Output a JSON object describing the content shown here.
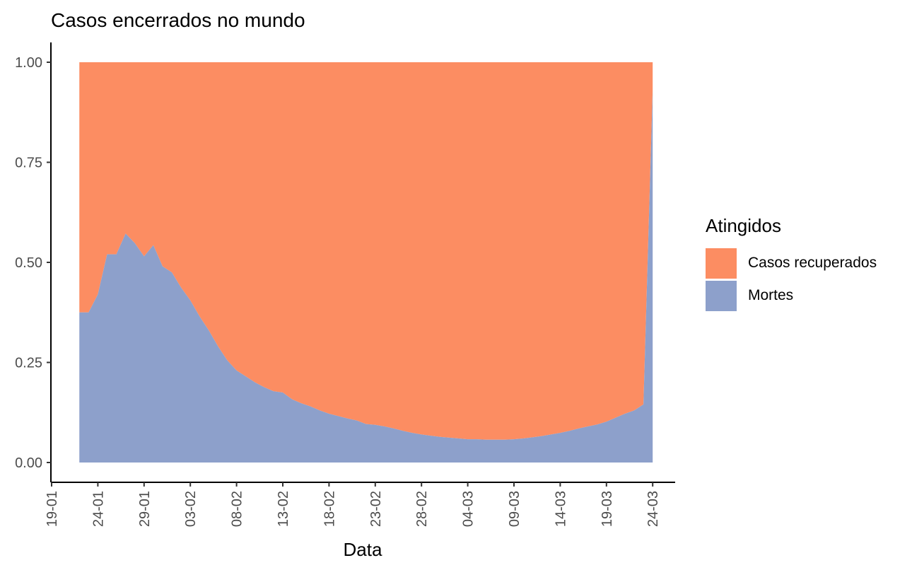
{
  "chart_data": {
    "type": "area",
    "stacked": true,
    "normalized": true,
    "title": "Casos encerrados no mundo",
    "xlabel": "Data",
    "ylabel": "",
    "ylim": [
      0,
      1
    ],
    "yticks": [
      "0.00",
      "0.25",
      "0.50",
      "0.75",
      "1.00"
    ],
    "xticks": [
      "19-01",
      "24-01",
      "29-01",
      "03-02",
      "08-02",
      "13-02",
      "18-02",
      "23-02",
      "28-02",
      "04-03",
      "09-03",
      "14-03",
      "19-03",
      "24-03"
    ],
    "x_start": "22-01",
    "x_end": "24-03",
    "grid": false,
    "legend": {
      "title": "Atingidos",
      "position": "right",
      "entries": [
        "Casos recuperados",
        "Mortes"
      ]
    },
    "colors": {
      "Casos recuperados": "#FC8D62",
      "Mortes": "#8DA0CB"
    },
    "series": [
      {
        "name": "Mortes",
        "points": [
          [
            "22-01",
            0.375
          ],
          [
            "23-01",
            0.375
          ],
          [
            "24-01",
            0.42
          ],
          [
            "25-01",
            0.52
          ],
          [
            "26-01",
            0.52
          ],
          [
            "27-01",
            0.572
          ],
          [
            "28-01",
            0.548
          ],
          [
            "29-01",
            0.515
          ],
          [
            "30-01",
            0.543
          ],
          [
            "31-01",
            0.49
          ],
          [
            "01-02",
            0.475
          ],
          [
            "02-02",
            0.437
          ],
          [
            "03-02",
            0.405
          ],
          [
            "04-02",
            0.365
          ],
          [
            "05-02",
            0.33
          ],
          [
            "06-02",
            0.29
          ],
          [
            "07-02",
            0.255
          ],
          [
            "08-02",
            0.23
          ],
          [
            "09-02",
            0.215
          ],
          [
            "10-02",
            0.2
          ],
          [
            "11-02",
            0.188
          ],
          [
            "12-02",
            0.178
          ],
          [
            "13-02",
            0.175
          ],
          [
            "14-02",
            0.158
          ],
          [
            "15-02",
            0.148
          ],
          [
            "16-02",
            0.14
          ],
          [
            "17-02",
            0.13
          ],
          [
            "18-02",
            0.122
          ],
          [
            "19-02",
            0.116
          ],
          [
            "20-02",
            0.11
          ],
          [
            "21-02",
            0.105
          ],
          [
            "22-02",
            0.096
          ],
          [
            "23-02",
            0.094
          ],
          [
            "24-02",
            0.09
          ],
          [
            "25-02",
            0.085
          ],
          [
            "26-02",
            0.079
          ],
          [
            "27-02",
            0.074
          ],
          [
            "28-02",
            0.07
          ],
          [
            "29-02",
            0.067
          ],
          [
            "01-03",
            0.064
          ],
          [
            "02-03",
            0.062
          ],
          [
            "03-03",
            0.06
          ],
          [
            "04-03",
            0.058
          ],
          [
            "05-03",
            0.058
          ],
          [
            "06-03",
            0.057
          ],
          [
            "07-03",
            0.057
          ],
          [
            "08-03",
            0.057
          ],
          [
            "09-03",
            0.058
          ],
          [
            "10-03",
            0.06
          ],
          [
            "11-03",
            0.063
          ],
          [
            "12-03",
            0.066
          ],
          [
            "13-03",
            0.07
          ],
          [
            "14-03",
            0.074
          ],
          [
            "15-03",
            0.079
          ],
          [
            "16-03",
            0.085
          ],
          [
            "17-03",
            0.09
          ],
          [
            "18-03",
            0.095
          ],
          [
            "19-03",
            0.102
          ],
          [
            "20-03",
            0.112
          ],
          [
            "21-03",
            0.122
          ],
          [
            "22-03",
            0.13
          ],
          [
            "23-03",
            0.145
          ],
          [
            "24-03",
            0.93
          ]
        ]
      },
      {
        "name": "Casos recuperados",
        "note_complement": true
      }
    ]
  }
}
